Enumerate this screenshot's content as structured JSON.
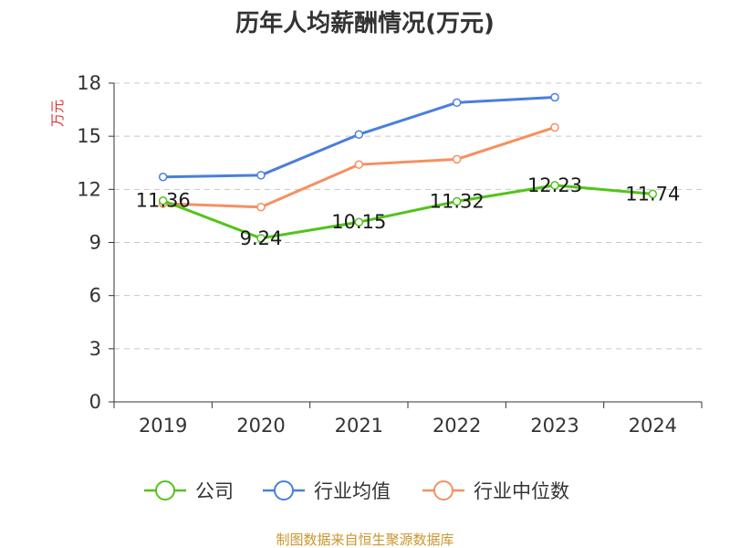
{
  "chart_data": {
    "type": "line",
    "title": "历年人均薪酬情况(万元)",
    "ylabel": "万元",
    "xlabel": "",
    "categories": [
      "2019",
      "2020",
      "2021",
      "2022",
      "2023",
      "2024"
    ],
    "ylim": [
      0,
      18
    ],
    "yticks": [
      "0",
      "3",
      "6",
      "9",
      "12",
      "15",
      "18"
    ],
    "grid": true,
    "legend_position": "bottom",
    "series": [
      {
        "name": "公司",
        "color": "#52c41a",
        "values": [
          11.36,
          9.24,
          10.15,
          11.32,
          12.23,
          11.74
        ],
        "labels": [
          "11.36",
          "9.24",
          "10.15",
          "11.32",
          "12.23",
          "11.74"
        ]
      },
      {
        "name": "行业均值",
        "color": "#4a7fdb",
        "values": [
          12.7,
          12.8,
          15.1,
          16.9,
          17.2,
          null
        ]
      },
      {
        "name": "行业中位数",
        "color": "#f59060",
        "values": [
          11.2,
          11.0,
          13.4,
          13.7,
          15.5,
          null
        ]
      }
    ],
    "source": "制图数据来自恒生聚源数据库",
    "source_color": "#c8962e",
    "ylabel_color": "#e03030"
  }
}
